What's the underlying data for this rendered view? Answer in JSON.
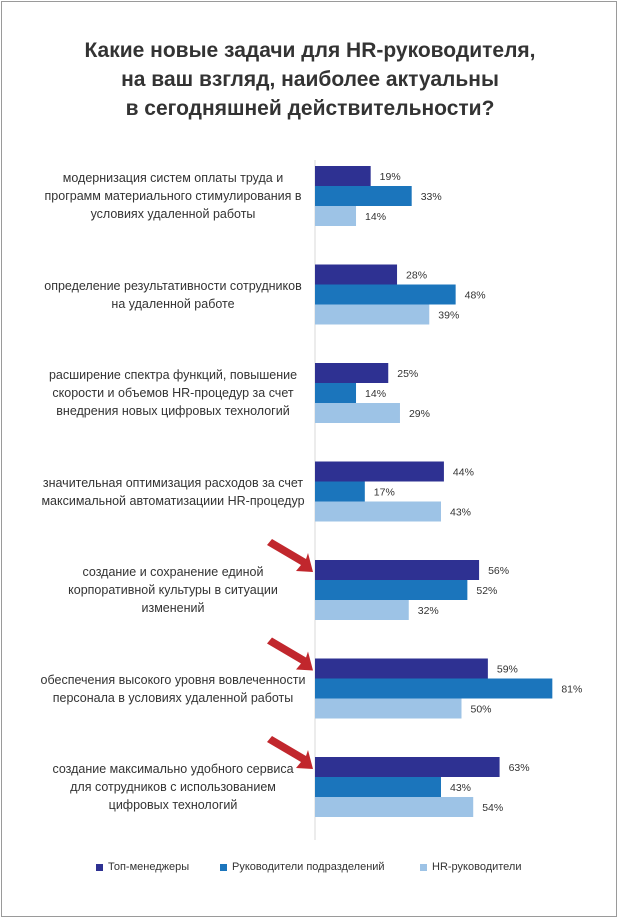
{
  "chart_data": {
    "type": "bar",
    "orientation": "horizontal",
    "title": "Какие новые задачи для HR-руководителя,\nна ваш взгляд, наиболее актуальны\nв сегодняшней действительности?",
    "categories": [
      "модернизация систем оплаты труда и программ материального стимулирования в условиях удаленной работы",
      "определение результативности сотрудников на удаленной работе",
      "расширение спектра функций, повышение скорости и объемов HR-процедур за счет внедрения новых цифровых технологий",
      "значительная оптимизация расходов за счет максимальной автоматизациии HR-процедур",
      "создание и сохранение единой корпоративной культуры в ситуации изменений",
      "обеспечения высокого уровня вовлеченности персонала в условиях удаленной работы",
      "создание максимально удобного сервиса для сотрудников с использованием цифровых технологий"
    ],
    "series": [
      {
        "name": "Топ-менеджеры",
        "color": "#2e3192",
        "values": [
          19,
          28,
          25,
          44,
          56,
          59,
          63
        ]
      },
      {
        "name": "Руководители подразделений",
        "color": "#1b75bc",
        "values": [
          33,
          48,
          14,
          17,
          52,
          81,
          43
        ]
      },
      {
        "name": "HR-руководители",
        "color": "#9dc3e6",
        "values": [
          14,
          39,
          29,
          43,
          32,
          50,
          54
        ]
      }
    ],
    "value_suffix": "%",
    "highlighted": [
      4,
      5,
      6
    ],
    "arrow_color": "#c1272d",
    "legend_position": "bottom",
    "xlim": [
      0,
      100
    ],
    "grid": false
  }
}
